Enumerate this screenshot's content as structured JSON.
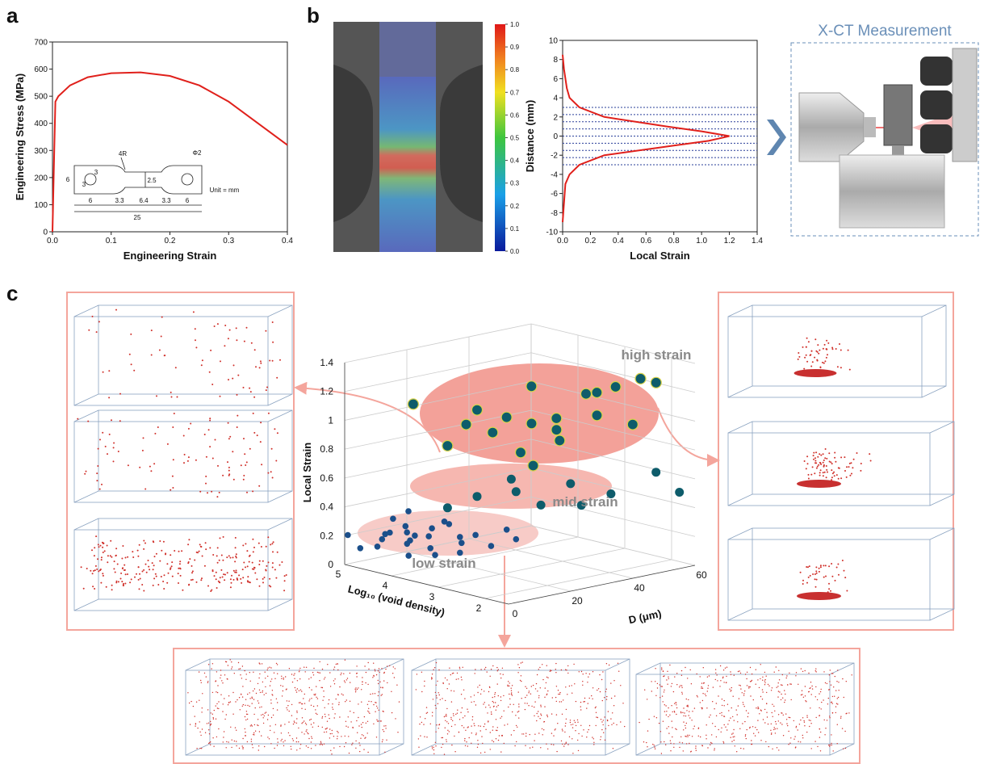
{
  "panels": [
    "a",
    "b",
    "c"
  ],
  "ct_title": "X-CT Measurement",
  "chart_data": [
    {
      "type": "line",
      "x_label": "Engineering Strain",
      "y_label": "Engineering Stress (MPa)",
      "x": [
        0,
        0.003,
        0.005,
        0.01,
        0.03,
        0.06,
        0.1,
        0.15,
        0.2,
        0.25,
        0.3,
        0.35,
        0.4
      ],
      "values": [
        0,
        300,
        480,
        500,
        540,
        570,
        585,
        588,
        575,
        540,
        480,
        400,
        320
      ],
      "color": "#e0201b",
      "xlim": [
        0,
        0.4
      ],
      "xticks": [
        {
          "value": 0,
          "label": "0.0"
        },
        0.1,
        0.2,
        0.3,
        0.4
      ],
      "ylim": [
        0,
        700
      ],
      "yticks": [
        0,
        100,
        200,
        300,
        400,
        500,
        600,
        700
      ],
      "annotations": [
        "4R",
        "Φ2",
        "6",
        "3",
        "3",
        "2.5",
        "Unit = mm",
        "6",
        "3.3",
        "6.4",
        "3.3",
        "6",
        "25"
      ]
    },
    {
      "type": "colorbar",
      "ylim": [
        0,
        1
      ],
      "yticks": [
        {
          "value": 0,
          "label": "0.0"
        },
        0.1,
        0.2,
        0.3,
        0.4,
        0.5,
        0.6,
        0.7,
        0.8,
        0.9,
        {
          "value": 1,
          "label": "1.0"
        }
      ]
    },
    {
      "type": "line",
      "x_label": "Local Strain",
      "y_label": "Distance (mm)",
      "x": [
        0,
        0.01,
        0.02,
        0.05,
        0.12,
        0.3,
        0.8,
        1.05,
        1.2,
        1.0,
        0.75,
        0.3,
        0.12,
        0.05,
        0.03,
        0.01,
        0
      ],
      "values": [
        -9,
        -7,
        -5,
        -4,
        -3,
        -2,
        -1,
        -0.5,
        0,
        0.5,
        1,
        2,
        3,
        4,
        5,
        7,
        8.5
      ],
      "color": "#e0201b",
      "reference_lines": [
        -3,
        -2.25,
        -1.5,
        -0.75,
        0,
        0.75,
        1.5,
        2.25,
        3
      ],
      "xlim": [
        0,
        1.4
      ],
      "xticks": [
        {
          "value": 0,
          "label": "0.0"
        },
        0.2,
        0.4,
        0.6,
        0.8,
        {
          "value": 1,
          "label": "1.0"
        },
        1.2,
        1.4
      ],
      "ylim": [
        -10,
        10
      ],
      "yticks": [
        -10,
        -8,
        -6,
        -4,
        -2,
        0,
        2,
        4,
        6,
        8,
        10
      ]
    },
    {
      "type": "scatter3d",
      "x_label": "D (μm)",
      "y_label": "Log₁₀ (void density)",
      "z_label": "Local Strain",
      "xlim": [
        0,
        60
      ],
      "xticks": [
        0,
        20,
        40,
        60
      ],
      "ylim": [
        1.5,
        5
      ],
      "yticks": [
        2,
        3,
        4,
        5
      ],
      "zlim": [
        0,
        1.4
      ],
      "zticks": [
        0,
        0.2,
        0.4,
        0.6,
        0.8,
        1,
        1.2,
        1.4
      ],
      "series": [
        {
          "name": "high strain",
          "color": "#0e5c6b",
          "x": [
            30,
            25,
            35,
            20,
            40,
            45,
            50,
            15,
            28,
            33,
            38,
            22,
            42,
            55,
            10,
            18,
            48,
            26,
            36,
            52
          ],
          "y": [
            3,
            3.2,
            2.8,
            3.5,
            2.5,
            2.2,
            2,
            3.8,
            3.1,
            2.6,
            3,
            3.3,
            2.4,
            2,
            4.2,
            3.6,
            2.8,
            2.7,
            3.4,
            2.3
          ],
          "values": [
            1.0,
            1.05,
            0.95,
            1.1,
            1.2,
            1.25,
            1.3,
            0.85,
            0.8,
            0.9,
            1.0,
            0.95,
            1.05,
            1.25,
            1.13,
            1.0,
            1.15,
            0.75,
            1.2,
            0.95
          ]
        },
        {
          "name": "mid strain",
          "color": "#0e5c6b",
          "x": [
            20,
            25,
            30,
            35,
            45,
            15,
            28,
            40,
            58,
            58
          ],
          "y": [
            3.5,
            3,
            2.8,
            2.5,
            2.3,
            3.8,
            3.3,
            2.6,
            2.2,
            1.7
          ],
          "values": [
            0.5,
            0.55,
            0.45,
            0.6,
            0.5,
            0.42,
            0.6,
            0.42,
            0.6,
            0.5
          ]
        },
        {
          "name": "low strain",
          "color": "#1b4f8a",
          "x": [
            5,
            8,
            3,
            10,
            12,
            6,
            15,
            2,
            9,
            14,
            7,
            4,
            11,
            18,
            20,
            13,
            16,
            1,
            22,
            6,
            10,
            25,
            8,
            17,
            12,
            5,
            19
          ],
          "y": [
            4,
            4.2,
            4.5,
            3.8,
            4,
            4.6,
            3.5,
            4.8,
            4.3,
            3.7,
            4.1,
            4.4,
            3.9,
            3.4,
            3.2,
            4.5,
            3.6,
            5,
            3,
            3.9,
            4.7,
            3,
            3.6,
            4,
            4.4,
            4.3,
            3.8
          ],
          "values": [
            0.2,
            0.25,
            0.15,
            0.3,
            0.22,
            0.18,
            0.2,
            0.12,
            0.28,
            0.32,
            0.1,
            0.24,
            0.15,
            0.25,
            0.18,
            0.35,
            0.12,
            0.2,
            0.3,
            0.26,
            0.2,
            0.22,
            0.14,
            0.3,
            0.16,
            0.35,
            0.2
          ]
        }
      ]
    }
  ]
}
